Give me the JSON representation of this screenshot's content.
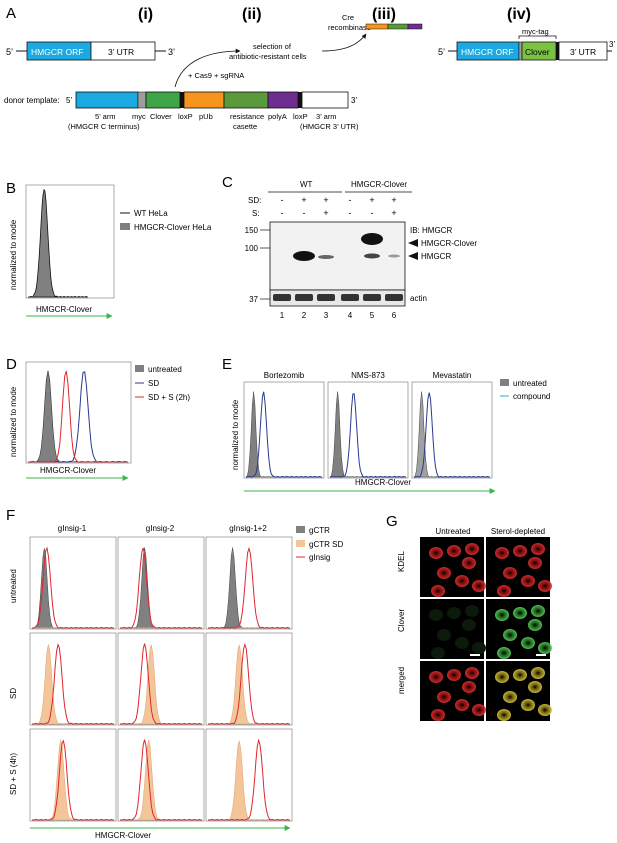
{
  "panels": {
    "A": "A",
    "B": "B",
    "C": "C",
    "D": "D",
    "E": "E",
    "F": "F",
    "G": "G"
  },
  "panelA": {
    "steps": [
      "(i)",
      "(ii)",
      "(iii)",
      "(iv)"
    ],
    "five_prime": "5’",
    "three_prime": "3’",
    "orf": "HMGCR ORF",
    "utr": "3’ UTR",
    "cas9": "+ Cas9 + sgRNA",
    "selection_line1": "selection of",
    "selection_line2": "antibiotic-resistant cells",
    "cre_line1": "Cre",
    "cre_line2": "recombinase",
    "myc_tag": "myc-tag",
    "clover": "Clover",
    "donor_label": "donor template:",
    "donor_5": "5’",
    "donor_3": "3’",
    "parts": {
      "arm5": "5’ arm",
      "arm5_sub": "(HMGCR C terminus)",
      "myc": "myc",
      "clover": "Clover",
      "loxp1": "loxP",
      "pub": "pUb",
      "resistance1": "resistance",
      "resistance2": "casette",
      "polya": "polyA",
      "loxp2": "loxP",
      "arm3": "3’ arm",
      "arm3_sub": "(HMGCR 3’ UTR)"
    },
    "colors": {
      "orf": "#1ba9e1",
      "clover": "#7cc242",
      "pub": "#f7941d",
      "resist": "#5a9a3b",
      "polya": "#6f2c91",
      "myc": "#9d9d9d"
    }
  },
  "panelB": {
    "ylabel": "normalized to mode",
    "xlabel": "HMGCR-Clover",
    "legend": [
      "WT HeLa",
      "HMGCR-Clover HeLa"
    ]
  },
  "panelC": {
    "wt": "WT",
    "hc": "HMGCR-Clover",
    "sd_label": "SD:",
    "s_label": "S:",
    "sd_values": [
      "-",
      "+",
      "+",
      "-",
      "+",
      "+"
    ],
    "s_values": [
      "-",
      "-",
      "+",
      "-",
      "-",
      "+"
    ],
    "markers": [
      "150",
      "100",
      "37"
    ],
    "ib": "IB: HMGCR",
    "band1": "HMGCR-Clover",
    "band2": "HMGCR",
    "actin": "actin",
    "lanes": [
      "1",
      "2",
      "3",
      "4",
      "5",
      "6"
    ]
  },
  "panelD": {
    "ylabel": "normalized to mode",
    "xlabel": "HMGCR-Clover",
    "legend": [
      "untreated",
      "SD",
      "SD + S (2h)"
    ]
  },
  "panelE": {
    "ylabel": "normalized to mode",
    "xlabel": "HMGCR-Clover",
    "titles": [
      "Bortezomib",
      "NMS-873",
      "Mevastatin"
    ],
    "legend": [
      "untreated",
      "compound"
    ]
  },
  "panelF": {
    "cols": [
      "gInsig-1",
      "gInsig-2",
      "gInsig-1+2"
    ],
    "rows": [
      "untreated",
      "SD",
      "SD + S (4h)"
    ],
    "legend": [
      "gCTR",
      "gCTR SD",
      "gInsig"
    ],
    "xlabel": "HMGCR-Clover"
  },
  "panelG": {
    "cols": [
      "Untreated",
      "Sterol-depleted"
    ],
    "rows": [
      "KDEL",
      "Clover",
      "merged"
    ]
  },
  "colors": {
    "red": "#e0262e",
    "blue": "#2b3990",
    "grey": "#808080",
    "orange": "#f5c59a",
    "cyan": "#29abe2",
    "green": "#39b54a"
  }
}
